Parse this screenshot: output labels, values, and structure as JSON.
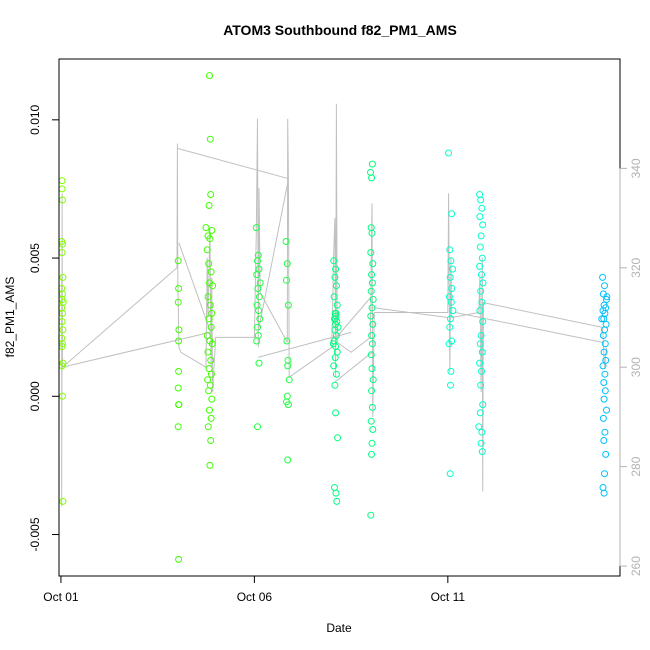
{
  "chart_data": {
    "type": "scatter",
    "title": "ATOM3 Southbound f82_PM1_AMS",
    "xlabel": "Date",
    "ylabel": "f82_PM1_AMS",
    "x_unit": "day of October",
    "xlim": [
      0.95,
      15.45
    ],
    "ylim": [
      -0.0065,
      0.0122
    ],
    "x_ticks": [
      {
        "value": 1,
        "label": "Oct 01"
      },
      {
        "value": 6,
        "label": "Oct 06"
      },
      {
        "value": 11,
        "label": "Oct 11"
      }
    ],
    "y_ticks": [
      {
        "value": -0.005,
        "label": "-0.005"
      },
      {
        "value": 0.0,
        "label": "0.000"
      },
      {
        "value": 0.005,
        "label": "0.005"
      },
      {
        "value": 0.01,
        "label": "0.010"
      }
    ],
    "y2_axis": {
      "color": "#b3b3b3",
      "ylim": [
        258,
        362
      ],
      "ticks": [
        {
          "value": 260,
          "label": "260"
        },
        {
          "value": 280,
          "label": "280"
        },
        {
          "value": 300,
          "label": "300"
        },
        {
          "value": 320,
          "label": "320"
        },
        {
          "value": 340,
          "label": "340"
        }
      ]
    },
    "grid": false,
    "legend": "none",
    "series": [
      {
        "color": "#80ff00",
        "marker": "open-circle",
        "points": [
          [
            1.03,
            0.0078
          ],
          [
            1.03,
            0.0075
          ],
          [
            1.04,
            0.0071
          ],
          [
            1.02,
            0.0056
          ],
          [
            1.04,
            0.0055
          ],
          [
            1.03,
            0.0052
          ],
          [
            1.05,
            0.0043
          ],
          [
            1.02,
            0.0039
          ],
          [
            1.04,
            0.0037
          ],
          [
            1.03,
            0.0035
          ],
          [
            1.06,
            0.0034
          ],
          [
            1.02,
            0.0032
          ],
          [
            1.04,
            0.003
          ],
          [
            1.03,
            0.0027
          ],
          [
            1.05,
            0.0024
          ],
          [
            1.02,
            0.0021
          ],
          [
            1.04,
            0.0019
          ],
          [
            1.03,
            0.0018
          ],
          [
            1.05,
            0.0012
          ],
          [
            1.03,
            0.0011
          ],
          [
            1.04,
            0.0
          ],
          [
            1.05,
            -0.0038
          ]
        ]
      },
      {
        "color": "#40ff00",
        "marker": "open-circle",
        "points": [
          [
            4.03,
            0.0049
          ],
          [
            4.04,
            0.0039
          ],
          [
            4.03,
            0.0034
          ],
          [
            4.05,
            0.0024
          ],
          [
            4.04,
            0.002
          ],
          [
            4.04,
            0.0009
          ],
          [
            4.03,
            0.0003
          ],
          [
            4.05,
            -0.0003
          ],
          [
            4.04,
            -0.0003
          ],
          [
            4.03,
            -0.0011
          ],
          [
            4.04,
            -0.0059
          ],
          [
            4.75,
            0.0061
          ],
          [
            4.8,
            0.0058
          ],
          [
            4.78,
            0.0053
          ],
          [
            4.85,
            0.0057
          ],
          [
            4.9,
            0.006
          ],
          [
            4.82,
            0.0048
          ],
          [
            4.88,
            0.0045
          ],
          [
            4.84,
            0.0041
          ],
          [
            4.92,
            0.004
          ],
          [
            4.8,
            0.0036
          ],
          [
            4.86,
            0.0033
          ],
          [
            4.9,
            0.003
          ],
          [
            4.83,
            0.0028
          ],
          [
            4.88,
            0.0025
          ],
          [
            4.78,
            0.0022
          ],
          [
            4.85,
            0.002
          ],
          [
            4.91,
            0.0019
          ],
          [
            4.8,
            0.0016
          ],
          [
            4.87,
            0.0013
          ],
          [
            4.83,
            0.001
          ],
          [
            4.89,
            0.0008
          ],
          [
            4.79,
            0.0006
          ],
          [
            4.86,
            0.0004
          ],
          [
            4.82,
            0.0002
          ],
          [
            4.9,
            -0.0001
          ],
          [
            4.84,
            -0.0005
          ],
          [
            4.88,
            -0.0008
          ],
          [
            4.81,
            -0.0011
          ],
          [
            4.87,
            -0.0016
          ],
          [
            4.85,
            -0.0025
          ],
          [
            4.86,
            0.0093
          ],
          [
            4.84,
            0.0116
          ],
          [
            4.87,
            0.0073
          ],
          [
            4.83,
            0.0069
          ]
        ]
      },
      {
        "color": "#20ff40",
        "marker": "open-circle",
        "points": [
          [
            6.05,
            0.0061
          ],
          [
            6.1,
            0.0051
          ],
          [
            6.08,
            0.0049
          ],
          [
            6.12,
            0.0046
          ],
          [
            6.06,
            0.0044
          ],
          [
            6.15,
            0.0041
          ],
          [
            6.09,
            0.0039
          ],
          [
            6.13,
            0.0036
          ],
          [
            6.07,
            0.0033
          ],
          [
            6.11,
            0.0031
          ],
          [
            6.14,
            0.0028
          ],
          [
            6.08,
            0.0025
          ],
          [
            6.1,
            0.0022
          ],
          [
            6.06,
            0.002
          ],
          [
            6.12,
            0.0012
          ],
          [
            6.08,
            -0.0011
          ],
          [
            6.82,
            0.0056
          ],
          [
            6.85,
            0.0048
          ],
          [
            6.83,
            0.0042
          ],
          [
            6.88,
            0.0033
          ],
          [
            6.84,
            0.002
          ],
          [
            6.87,
            0.0013
          ],
          [
            6.86,
            0.0011
          ],
          [
            6.9,
            0.0006
          ],
          [
            6.85,
            0.0
          ],
          [
            6.88,
            -0.0003
          ],
          [
            6.83,
            -0.0002
          ],
          [
            6.86,
            -0.0023
          ]
        ]
      },
      {
        "color": "#00ff80",
        "marker": "open-circle",
        "points": [
          [
            8.05,
            0.0049
          ],
          [
            8.1,
            0.0046
          ],
          [
            8.08,
            0.0043
          ],
          [
            8.12,
            0.004
          ],
          [
            8.06,
            0.0036
          ],
          [
            8.14,
            0.0033
          ],
          [
            8.09,
            0.003
          ],
          [
            8.11,
            0.0029
          ],
          [
            8.07,
            0.0028
          ],
          [
            8.13,
            0.0027
          ],
          [
            8.1,
            0.0026
          ],
          [
            8.08,
            0.0024
          ],
          [
            8.12,
            0.0022
          ],
          [
            8.06,
            0.002
          ],
          [
            8.1,
            0.0018
          ],
          [
            8.14,
            0.0016
          ],
          [
            8.09,
            0.0014
          ],
          [
            8.05,
            0.0011
          ],
          [
            8.12,
            0.0008
          ],
          [
            8.08,
            0.0004
          ],
          [
            8.1,
            -0.0006
          ],
          [
            8.07,
            -0.0033
          ],
          [
            8.11,
            -0.0035
          ],
          [
            8.13,
            -0.0038
          ],
          [
            8.15,
            -0.0015
          ],
          [
            8.09,
            0.0028
          ],
          [
            8.11,
            0.003
          ],
          [
            8.04,
            0.0019
          ],
          [
            8.16,
            0.0025
          ],
          [
            9.0,
            0.0081
          ],
          [
            9.05,
            0.0084
          ],
          [
            9.03,
            0.0079
          ],
          [
            9.02,
            0.0061
          ],
          [
            9.04,
            0.0059
          ],
          [
            9.01,
            0.0052
          ],
          [
            9.06,
            0.0048
          ],
          [
            9.03,
            0.0044
          ],
          [
            9.05,
            0.0041
          ],
          [
            9.02,
            0.0038
          ],
          [
            9.07,
            0.0035
          ],
          [
            9.04,
            0.0032
          ],
          [
            9.01,
            0.0029
          ],
          [
            9.06,
            0.0026
          ],
          [
            9.03,
            0.0022
          ],
          [
            9.05,
            0.0019
          ],
          [
            9.02,
            0.0015
          ],
          [
            9.04,
            0.001
          ],
          [
            9.07,
            0.0006
          ],
          [
            9.03,
            0.0002
          ],
          [
            9.05,
            -0.0004
          ],
          [
            9.02,
            -0.0009
          ],
          [
            9.06,
            -0.0012
          ],
          [
            9.04,
            -0.0017
          ],
          [
            9.03,
            -0.0021
          ],
          [
            9.01,
            -0.0043
          ]
        ]
      },
      {
        "color": "#00ffcc",
        "marker": "open-circle",
        "points": [
          [
            11.02,
            0.0088
          ],
          [
            11.1,
            0.0066
          ],
          [
            11.05,
            0.0053
          ],
          [
            11.08,
            0.0049
          ],
          [
            11.12,
            0.0046
          ],
          [
            11.06,
            0.0043
          ],
          [
            11.1,
            0.0039
          ],
          [
            11.04,
            0.0036
          ],
          [
            11.09,
            0.0034
          ],
          [
            11.13,
            0.0031
          ],
          [
            11.07,
            0.0028
          ],
          [
            11.05,
            0.0025
          ],
          [
            11.1,
            0.002
          ],
          [
            11.03,
            0.0019
          ],
          [
            11.08,
            0.0009
          ],
          [
            11.07,
            0.0004
          ],
          [
            11.06,
            -0.0028
          ],
          [
            11.82,
            0.0073
          ],
          [
            11.85,
            0.0071
          ],
          [
            11.88,
            0.0068
          ],
          [
            11.83,
            0.0065
          ],
          [
            11.9,
            0.0062
          ],
          [
            11.86,
            0.0058
          ],
          [
            11.84,
            0.0054
          ],
          [
            11.89,
            0.005
          ],
          [
            11.82,
            0.0047
          ],
          [
            11.87,
            0.0044
          ],
          [
            11.91,
            0.0041
          ],
          [
            11.85,
            0.0038
          ],
          [
            11.88,
            0.0034
          ],
          [
            11.83,
            0.0031
          ],
          [
            11.9,
            0.0027
          ],
          [
            11.86,
            0.0022
          ],
          [
            11.84,
            0.0019
          ],
          [
            11.89,
            0.0016
          ],
          [
            11.82,
            0.0012
          ],
          [
            11.87,
            0.0009
          ],
          [
            11.85,
            0.0004
          ],
          [
            11.9,
            -0.0003
          ],
          [
            11.84,
            -0.0006
          ],
          [
            11.88,
            -0.0013
          ],
          [
            11.86,
            -0.0017
          ],
          [
            11.89,
            -0.002
          ],
          [
            11.8,
            -0.0011
          ]
        ]
      },
      {
        "color": "#00c0ff",
        "marker": "open-circle",
        "points": [
          [
            15.0,
            0.0043
          ],
          [
            15.05,
            0.004
          ],
          [
            15.02,
            0.0037
          ],
          [
            15.1,
            0.0035
          ],
          [
            15.04,
            0.0033
          ],
          [
            15.08,
            0.0032
          ],
          [
            15.01,
            0.0031
          ],
          [
            15.06,
            0.003
          ],
          [
            15.03,
            0.0028
          ],
          [
            15.09,
            0.0026
          ],
          [
            15.05,
            0.0024
          ],
          [
            15.02,
            0.0022
          ],
          [
            15.07,
            0.0019
          ],
          [
            15.04,
            0.0016
          ],
          [
            15.08,
            0.0013
          ],
          [
            15.01,
            0.0011
          ],
          [
            15.06,
            0.0008
          ],
          [
            15.03,
            0.0005
          ],
          [
            15.07,
            0.0002
          ],
          [
            15.04,
            -0.0001
          ],
          [
            15.1,
            -0.0005
          ],
          [
            15.02,
            -0.0008
          ],
          [
            15.06,
            -0.0013
          ],
          [
            15.03,
            -0.0016
          ],
          [
            15.08,
            -0.0021
          ],
          [
            15.05,
            -0.0028
          ],
          [
            15.01,
            -0.0033
          ],
          [
            15.04,
            -0.0035
          ],
          [
            14.98,
            0.0028
          ],
          [
            15.11,
            0.0036
          ]
        ]
      }
    ],
    "secondary_line": {
      "color": "#c0c0c0",
      "axis": "y2",
      "points": [
        [
          1.02,
          318
        ],
        [
          1.02,
          272
        ],
        [
          1.03,
          320
        ],
        [
          1.03,
          335
        ],
        [
          1.04,
          300
        ],
        [
          4.0,
          320
        ],
        [
          4.01,
          345
        ],
        [
          4.02,
          318
        ],
        [
          4.05,
          304
        ],
        [
          4.1,
          303
        ],
        [
          4.75,
          300
        ],
        [
          4.78,
          322
        ],
        [
          4.8,
          310
        ],
        [
          4.85,
          328
        ],
        [
          4.88,
          300
        ],
        [
          4.9,
          318
        ],
        [
          4.92,
          295
        ],
        [
          5.0,
          306
        ],
        [
          6.0,
          306
        ],
        [
          6.05,
          327
        ],
        [
          6.08,
          350
        ],
        [
          6.1,
          304
        ],
        [
          6.12,
          336
        ],
        [
          6.15,
          315
        ],
        [
          6.85,
          305
        ],
        [
          6.86,
          350
        ],
        [
          6.88,
          338
        ],
        [
          6.9,
          298
        ],
        [
          8.0,
          304
        ],
        [
          8.05,
          323
        ],
        [
          8.08,
          330
        ],
        [
          8.1,
          298
        ],
        [
          8.12,
          353
        ],
        [
          8.14,
          305
        ],
        [
          8.5,
          303
        ],
        [
          9.0,
          306
        ],
        [
          9.02,
          320
        ],
        [
          9.04,
          333
        ],
        [
          9.06,
          290
        ],
        [
          9.1,
          311
        ],
        [
          11.0,
          311
        ],
        [
          11.02,
          335
        ],
        [
          11.05,
          299
        ],
        [
          11.08,
          322
        ],
        [
          11.1,
          310
        ],
        [
          11.8,
          311
        ],
        [
          11.83,
          318
        ],
        [
          11.86,
          295
        ],
        [
          11.89,
          322
        ],
        [
          11.9,
          275
        ],
        [
          11.92,
          313
        ],
        [
          15.0,
          308
        ],
        [
          15.05,
          300
        ],
        [
          15.1,
          304
        ]
      ]
    },
    "secondary_connectors": [
      [
        [
          1.03,
          300
        ],
        [
          4.85,
          307
        ]
      ],
      [
        [
          4.02,
          344
        ],
        [
          6.85,
          338
        ]
      ],
      [
        [
          4.05,
          325
        ],
        [
          4.87,
          307
        ]
      ],
      [
        [
          6.12,
          308
        ],
        [
          6.86,
          337
        ]
      ],
      [
        [
          6.1,
          302
        ],
        [
          8.5,
          307
        ]
      ],
      [
        [
          8.12,
          306
        ],
        [
          9.0,
          314
        ]
      ],
      [
        [
          9.05,
          312
        ],
        [
          11.0,
          310
        ]
      ],
      [
        [
          11.2,
          311
        ],
        [
          15.0,
          305
        ]
      ],
      [
        [
          8.08,
          297
        ],
        [
          9.04,
          303
        ]
      ]
    ]
  }
}
